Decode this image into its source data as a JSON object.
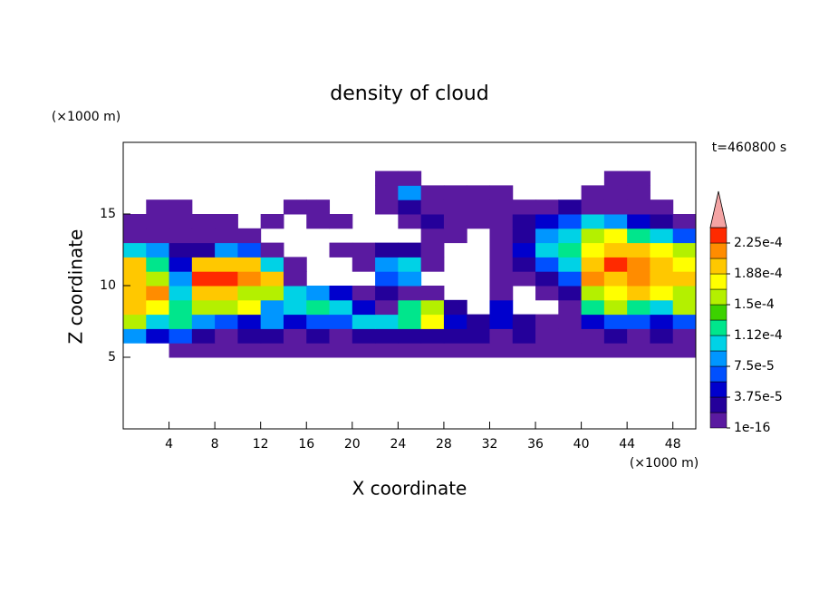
{
  "chart_data": {
    "type": "contour",
    "title": "density of cloud",
    "x_label": "X coordinate",
    "y_label": "Z coordinate",
    "x_unit": "(×1000 m)",
    "y_unit": "(×1000 m)",
    "annotation": "t=460800 s",
    "xlim": [
      0,
      50
    ],
    "ylim": [
      0,
      20
    ],
    "xticks": [
      4,
      8,
      12,
      16,
      20,
      24,
      28,
      32,
      36,
      40,
      44,
      48
    ],
    "yticks": [
      5,
      10,
      15
    ],
    "x": [
      1,
      3,
      5,
      7,
      9,
      11,
      13,
      15,
      17,
      19,
      21,
      23,
      25,
      27,
      29,
      31,
      33,
      35,
      37,
      39,
      41,
      43,
      45,
      47,
      49
    ],
    "z": [
      5.5,
      6.5,
      7.5,
      8.5,
      9.5,
      10.5,
      11.5,
      12.5,
      13.5,
      14.5,
      15.5,
      16.5,
      17.5
    ],
    "values": [
      [
        null,
        null,
        1e-16,
        1e-16,
        1e-16,
        1e-16,
        1e-16,
        1e-16,
        1e-16,
        1e-16,
        1e-16,
        1e-16,
        1e-16,
        1e-16,
        1e-16,
        1e-16,
        1e-16,
        1e-16,
        1e-16,
        1e-16,
        1e-16,
        1e-16,
        1e-16,
        1e-16,
        1e-16
      ],
      [
        9e-05,
        5e-05,
        7e-05,
        2.5e-05,
        1e-16,
        2.5e-05,
        2.5e-05,
        1e-16,
        2.5e-05,
        1e-16,
        2.5e-05,
        2.5e-05,
        2.5e-05,
        2.5e-05,
        2.5e-05,
        2.5e-05,
        1e-16,
        2.5e-05,
        1e-16,
        1e-16,
        1e-16,
        2.5e-05,
        1e-16,
        2.5e-05,
        1e-16
      ],
      [
        0.00016,
        0.00011,
        0.00013,
        9e-05,
        7e-05,
        5e-05,
        9e-05,
        5e-05,
        7e-05,
        7e-05,
        0.00011,
        0.00011,
        0.00013,
        0.00018,
        5e-05,
        2.5e-05,
        5e-05,
        2.5e-05,
        1e-16,
        1e-16,
        5e-05,
        7e-05,
        7e-05,
        5e-05,
        7e-05
      ],
      [
        0.0002,
        0.00018,
        0.00013,
        0.00016,
        0.00016,
        0.00018,
        9e-05,
        0.00011,
        0.00013,
        0.00011,
        5e-05,
        1e-16,
        0.00013,
        0.00016,
        2.5e-05,
        null,
        5e-05,
        null,
        null,
        1e-16,
        0.00013,
        0.00016,
        0.00013,
        0.00011,
        0.00016
      ],
      [
        0.0002,
        0.000215,
        0.00011,
        0.0002,
        0.0002,
        0.00016,
        0.00016,
        0.00011,
        9e-05,
        5e-05,
        1e-16,
        2.5e-05,
        1e-16,
        1e-16,
        null,
        null,
        1e-16,
        null,
        1e-16,
        2.5e-05,
        0.00016,
        0.00018,
        0.0002,
        0.00018,
        0.00016
      ],
      [
        0.0002,
        0.00016,
        9e-05,
        0.00023,
        0.00023,
        0.000215,
        0.0002,
        1e-16,
        null,
        null,
        null,
        7e-05,
        9e-05,
        null,
        null,
        null,
        1e-16,
        1e-16,
        2.5e-05,
        7e-05,
        0.000215,
        0.0002,
        0.000215,
        0.0002,
        0.0002
      ],
      [
        0.0002,
        0.00013,
        5e-05,
        0.0002,
        0.0002,
        0.0002,
        0.00011,
        1e-16,
        null,
        null,
        1e-16,
        9e-05,
        0.00011,
        1e-16,
        null,
        null,
        1e-16,
        2.5e-05,
        7e-05,
        0.00011,
        0.0002,
        0.00023,
        0.000215,
        0.0002,
        0.00018
      ],
      [
        0.00011,
        9e-05,
        2.5e-05,
        2.5e-05,
        9e-05,
        7e-05,
        1e-16,
        null,
        null,
        1e-16,
        1e-16,
        2.5e-05,
        2.5e-05,
        1e-16,
        null,
        null,
        1e-16,
        5e-05,
        0.00011,
        0.00013,
        0.00018,
        0.0002,
        0.0002,
        0.00018,
        0.00016
      ],
      [
        1e-16,
        1e-16,
        1e-16,
        1e-16,
        1e-16,
        1e-16,
        null,
        null,
        null,
        null,
        null,
        null,
        null,
        1e-16,
        1e-16,
        null,
        1e-16,
        2.5e-05,
        9e-05,
        0.00011,
        0.00016,
        0.00018,
        0.00013,
        0.00011,
        7e-05
      ],
      [
        1e-16,
        1e-16,
        1e-16,
        1e-16,
        1e-16,
        null,
        1e-16,
        null,
        1e-16,
        1e-16,
        null,
        null,
        1e-16,
        2.5e-05,
        1e-16,
        1e-16,
        1e-16,
        2.5e-05,
        5e-05,
        7e-05,
        0.00011,
        9e-05,
        5e-05,
        2.5e-05,
        1e-16
      ],
      [
        null,
        1e-16,
        1e-16,
        null,
        null,
        null,
        null,
        1e-16,
        1e-16,
        null,
        null,
        1e-16,
        2.5e-05,
        1e-16,
        1e-16,
        1e-16,
        1e-16,
        1e-16,
        1e-16,
        2.5e-05,
        1e-16,
        1e-16,
        1e-16,
        1e-16,
        null
      ],
      [
        null,
        null,
        null,
        null,
        null,
        null,
        null,
        null,
        null,
        null,
        null,
        1e-16,
        9e-05,
        1e-16,
        1e-16,
        1e-16,
        1e-16,
        null,
        null,
        null,
        1e-16,
        1e-16,
        1e-16,
        null,
        null
      ],
      [
        null,
        null,
        null,
        null,
        null,
        null,
        null,
        null,
        null,
        null,
        null,
        1e-16,
        1e-16,
        null,
        null,
        null,
        null,
        null,
        null,
        null,
        null,
        1e-16,
        1e-16,
        null,
        null
      ]
    ],
    "levels": [
      1e-16,
      1.875e-05,
      3.75e-05,
      5.625e-05,
      7.5e-05,
      9.375e-05,
      0.0001125,
      0.00013125,
      0.00015,
      0.00016875,
      0.0001875,
      0.00020625,
      0.000225,
      0.00024375
    ],
    "colors": [
      "#5a1aa0",
      "#24009a",
      "#0000cd",
      "#0050ff",
      "#0096ff",
      "#00d2e6",
      "#00e68c",
      "#3cd200",
      "#b4f000",
      "#ffff00",
      "#ffc800",
      "#ff8c00",
      "#ff2a00"
    ],
    "overflow_color": "#f4a4a4",
    "colorbar_ticks": [
      {
        "value": 1e-16,
        "label": "1e-16"
      },
      {
        "value": 3.75e-05,
        "label": "3.75e-5"
      },
      {
        "value": 7.5e-05,
        "label": "7.5e-5"
      },
      {
        "value": 0.0001125,
        "label": "1.12e-4"
      },
      {
        "value": 0.00015,
        "label": "1.5e-4"
      },
      {
        "value": 0.0001875,
        "label": "1.88e-4"
      },
      {
        "value": 0.000225,
        "label": "2.25e-4"
      }
    ]
  }
}
